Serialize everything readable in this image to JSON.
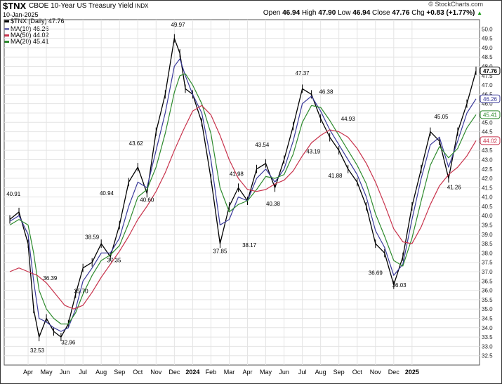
{
  "header": {
    "symbol": "$TNX",
    "name": "CBOE 10-Year US Treasury Yield",
    "exchange": "INDX",
    "date": "10-Jan-2025",
    "credit": "© StockCharts.com",
    "open_label": "Open",
    "open": "46.94",
    "high_label": "High",
    "high": "47.90",
    "low_label": "Low",
    "low": "46.94",
    "close_label": "Close",
    "close": "47.76",
    "chg_label": "Chg",
    "chg": "+0.83 (+1.77%)",
    "chg_arrow": "▲"
  },
  "legend": [
    {
      "text": "$TNX (Daily) 47.76",
      "color": "#000000"
    },
    {
      "text": "MA(10) 46.26",
      "color": "#3a3a9a"
    },
    {
      "text": "MA(50) 44.02",
      "color": "#c8334c"
    },
    {
      "text": "MA(20) 45.41",
      "color": "#2e8b2e"
    }
  ],
  "chart_data": {
    "type": "line",
    "title": "$TNX CBOE 10-Year US Treasury Yield INDX",
    "x_axis_labels": [
      "Apr",
      "May",
      "Jun",
      "Jul",
      "Aug",
      "Sep",
      "Oct",
      "Nov",
      "Dec",
      "2024",
      "Feb",
      "Mar",
      "Apr",
      "May",
      "Jun",
      "Jul",
      "Aug",
      "Sep",
      "Oct",
      "Nov",
      "Dec",
      "2025"
    ],
    "y_ticks": [
      "32.5",
      "33.0",
      "33.5",
      "34.0",
      "34.5",
      "35.0",
      "35.5",
      "36.0",
      "36.5",
      "37.0",
      "37.5",
      "38.0",
      "38.5",
      "39.0",
      "39.5",
      "40.0",
      "40.5",
      "41.0",
      "41.5",
      "42.0",
      "42.5",
      "43.0",
      "43.5",
      "44.0",
      "44.5",
      "45.0",
      "45.5",
      "46.0",
      "46.5",
      "47.0",
      "47.5",
      "48.0",
      "48.5",
      "49.0",
      "49.5",
      "50.0"
    ],
    "ylim": [
      32.0,
      50.5
    ],
    "grid": true,
    "price_markers": [
      {
        "value": "47.76",
        "color": "#000000"
      },
      {
        "value": "46.26",
        "color": "#3a3a9a"
      },
      {
        "value": "45.41",
        "color": "#2e8b2e"
      },
      {
        "value": "44.02",
        "color": "#c8334c"
      }
    ],
    "annotations": [
      {
        "x": 0.2,
        "y": 40.91,
        "text": "40.91"
      },
      {
        "x": 1.5,
        "y": 32.53,
        "text": "32.53"
      },
      {
        "x": 2.2,
        "y": 36.39,
        "text": "36.39"
      },
      {
        "x": 3.2,
        "y": 32.96,
        "text": "32.96"
      },
      {
        "x": 3.9,
        "y": 35.7,
        "text": "35.70"
      },
      {
        "x": 4.5,
        "y": 38.59,
        "text": "38.59"
      },
      {
        "x": 5.3,
        "y": 40.94,
        "text": "40.94"
      },
      {
        "x": 5.7,
        "y": 37.35,
        "text": "37.35"
      },
      {
        "x": 6.9,
        "y": 43.62,
        "text": "43.62"
      },
      {
        "x": 7.5,
        "y": 40.6,
        "text": "40.60"
      },
      {
        "x": 9.2,
        "y": 49.97,
        "text": "49.97"
      },
      {
        "x": 11.5,
        "y": 37.85,
        "text": "37.85"
      },
      {
        "x": 12.4,
        "y": 41.98,
        "text": "41.98"
      },
      {
        "x": 13.1,
        "y": 38.17,
        "text": "38.17"
      },
      {
        "x": 13.8,
        "y": 43.54,
        "text": "43.54"
      },
      {
        "x": 14.4,
        "y": 40.38,
        "text": "40.38"
      },
      {
        "x": 16.0,
        "y": 47.37,
        "text": "47.37"
      },
      {
        "x": 16.6,
        "y": 43.19,
        "text": "43.19"
      },
      {
        "x": 17.3,
        "y": 46.38,
        "text": "46.38"
      },
      {
        "x": 17.8,
        "y": 41.88,
        "text": "41.88"
      },
      {
        "x": 18.5,
        "y": 44.93,
        "text": "44.93"
      },
      {
        "x": 20.0,
        "y": 36.69,
        "text": "36.69"
      },
      {
        "x": 21.3,
        "y": 36.03,
        "text": "36.03"
      },
      {
        "x": 23.6,
        "y": 45.05,
        "text": "45.05"
      },
      {
        "x": 24.3,
        "y": 41.26,
        "text": "41.26"
      }
    ],
    "series": [
      {
        "name": "$TNX (Daily)",
        "color": "#000000",
        "x": [
          0,
          0.5,
          1,
          1.3,
          1.6,
          2,
          2.4,
          2.8,
          3.2,
          3.6,
          4,
          4.5,
          5,
          5.5,
          6,
          6.5,
          7,
          7.5,
          8,
          8.5,
          9,
          9.3,
          9.6,
          10,
          10.5,
          11,
          11.5,
          12,
          12.5,
          13,
          13.5,
          14,
          14.5,
          15,
          15.5,
          16,
          16.5,
          17,
          17.5,
          18,
          18.5,
          19,
          19.5,
          20,
          20.5,
          21,
          21.5,
          22,
          22.5,
          23,
          23.5,
          24,
          24.5,
          25,
          25.5
        ],
        "values": [
          39.8,
          40.2,
          38.5,
          35.0,
          33.5,
          34.5,
          33.8,
          33.5,
          34.2,
          35.8,
          37.2,
          37.5,
          38.5,
          37.8,
          39.5,
          41.8,
          42.6,
          41.2,
          44.5,
          46.5,
          49.5,
          48.7,
          46.8,
          46.5,
          45.0,
          42.0,
          38.5,
          40.5,
          41.5,
          40.8,
          42.5,
          42.8,
          41.5,
          43.0,
          44.8,
          46.8,
          46.5,
          45.2,
          44.2,
          43.5,
          42.5,
          41.8,
          40.5,
          38.5,
          38.0,
          36.3,
          37.8,
          40.5,
          42.5,
          44.5,
          44.0,
          42.0,
          44.5,
          46.0,
          47.76
        ]
      },
      {
        "name": "MA(10)",
        "color": "#3a3a9a",
        "x": [
          0,
          0.5,
          1,
          1.3,
          1.6,
          2,
          2.4,
          2.8,
          3.2,
          3.6,
          4,
          4.5,
          5,
          5.5,
          6,
          6.5,
          7,
          7.5,
          8,
          8.5,
          9,
          9.3,
          9.6,
          10,
          10.5,
          11,
          11.5,
          12,
          12.5,
          13,
          13.5,
          14,
          14.5,
          15,
          15.5,
          16,
          16.5,
          17,
          17.5,
          18,
          18.5,
          19,
          19.5,
          20,
          20.5,
          21,
          21.5,
          22,
          22.5,
          23,
          23.5,
          24,
          24.5,
          25,
          25.5
        ],
        "values": [
          39.7,
          40.0,
          39.0,
          36.5,
          34.5,
          34.3,
          34.0,
          33.8,
          34.0,
          35.0,
          36.5,
          37.2,
          38.0,
          38.0,
          38.8,
          40.5,
          41.8,
          41.5,
          43.5,
          45.5,
          48.0,
          48.4,
          47.5,
          46.5,
          45.5,
          43.0,
          39.5,
          39.8,
          41.0,
          40.8,
          42.0,
          42.5,
          41.8,
          42.5,
          44.0,
          46.0,
          46.4,
          45.6,
          44.6,
          43.8,
          43.0,
          42.2,
          41.0,
          39.2,
          38.3,
          36.8,
          37.4,
          39.8,
          42.0,
          43.8,
          44.2,
          42.6,
          44.0,
          45.5,
          46.26
        ]
      },
      {
        "name": "MA(20)",
        "color": "#2e8b2e",
        "x": [
          0,
          0.5,
          1,
          1.3,
          1.6,
          2,
          2.4,
          2.8,
          3.2,
          3.6,
          4,
          4.5,
          5,
          5.5,
          6,
          6.5,
          7,
          7.5,
          8,
          8.5,
          9,
          9.3,
          9.6,
          10,
          10.5,
          11,
          11.5,
          12,
          12.5,
          13,
          13.5,
          14,
          14.5,
          15,
          15.5,
          16,
          16.5,
          17,
          17.5,
          18,
          18.5,
          19,
          19.5,
          20,
          20.5,
          21,
          21.5,
          22,
          22.5,
          23,
          23.5,
          24,
          24.5,
          25,
          25.5
        ],
        "values": [
          39.5,
          39.8,
          39.5,
          38.0,
          36.0,
          35.0,
          34.5,
          34.2,
          34.2,
          34.8,
          35.8,
          36.8,
          37.6,
          37.9,
          38.4,
          39.6,
          41.0,
          41.4,
          42.6,
          44.4,
          46.6,
          47.5,
          47.6,
          47.0,
          46.0,
          44.4,
          41.5,
          40.2,
          40.6,
          40.8,
          41.4,
          42.1,
          42.0,
          42.2,
          43.3,
          45.0,
          45.9,
          45.8,
          45.1,
          44.3,
          43.5,
          42.7,
          41.7,
          40.1,
          38.9,
          37.6,
          37.3,
          38.8,
          40.8,
          42.7,
          43.7,
          43.1,
          43.6,
          44.7,
          45.41
        ]
      },
      {
        "name": "MA(50)",
        "color": "#c8334c",
        "x": [
          0,
          0.5,
          1,
          1.5,
          2,
          2.5,
          3,
          3.5,
          4,
          4.5,
          5,
          5.5,
          6,
          6.5,
          7,
          7.5,
          8,
          8.5,
          9,
          9.5,
          10,
          10.5,
          11,
          11.5,
          12,
          12.5,
          13,
          13.5,
          14,
          14.5,
          15,
          15.5,
          16,
          16.5,
          17,
          17.5,
          18,
          18.5,
          19,
          19.5,
          20,
          20.5,
          21,
          21.5,
          22,
          22.5,
          23,
          23.5,
          24,
          24.5,
          25,
          25.5
        ],
        "values": [
          37.0,
          37.2,
          37.0,
          36.8,
          36.4,
          35.8,
          35.2,
          35.0,
          35.2,
          35.9,
          36.7,
          37.4,
          38.1,
          38.9,
          39.8,
          40.5,
          41.3,
          42.3,
          43.5,
          44.6,
          45.6,
          45.9,
          45.4,
          44.3,
          43.0,
          42.0,
          41.4,
          41.3,
          41.4,
          41.7,
          41.9,
          42.4,
          43.2,
          43.9,
          44.3,
          44.6,
          44.5,
          44.2,
          43.6,
          42.8,
          41.8,
          40.6,
          39.3,
          38.6,
          38.5,
          39.4,
          40.6,
          41.6,
          42.2,
          42.6,
          43.2,
          44.02
        ]
      }
    ]
  }
}
